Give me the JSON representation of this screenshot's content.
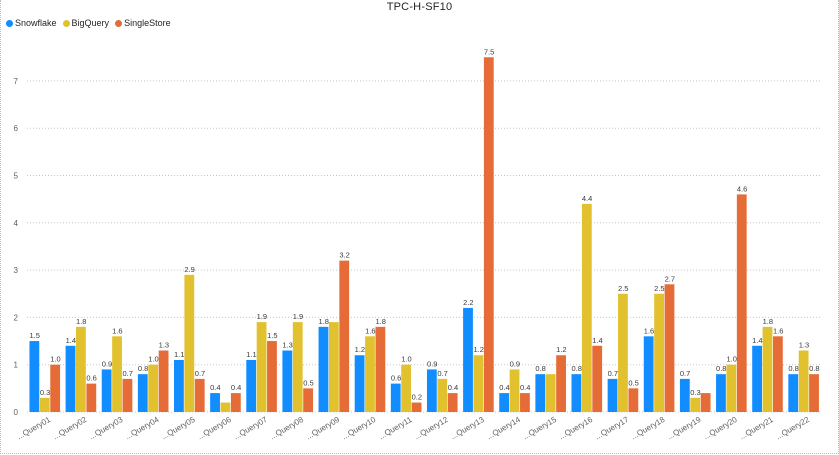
{
  "chart_data": {
    "type": "bar",
    "title": "TPC-H-SF10",
    "xlabel": "",
    "ylabel": "",
    "ylim": [
      0,
      8
    ],
    "yticks": [
      0,
      1,
      2,
      3,
      4,
      5,
      6,
      7
    ],
    "grid": true,
    "legend_position": "top-left",
    "categories": [
      "...Query01",
      "...Query02",
      "...Query03",
      "...Query04",
      "...Query05",
      "...Query06",
      "...Query07",
      "...Query08",
      "...Query09",
      "...Query10",
      "...Query11",
      "...Query12",
      "...Query13",
      "...Query14",
      "...Query15",
      "...Query16",
      "...Query17",
      "...Query18",
      "...Query19",
      "...Query20",
      "...Query21",
      "...Query22"
    ],
    "series": [
      {
        "name": "Snowflake",
        "color": "#118dff",
        "values": [
          1.5,
          1.4,
          0.9,
          0.8,
          1.1,
          0.4,
          1.1,
          1.3,
          1.8,
          1.2,
          0.6,
          0.9,
          2.2,
          0.4,
          0.8,
          0.8,
          0.7,
          1.6,
          0.7,
          0.8,
          1.4,
          0.8
        ]
      },
      {
        "name": "BigQuery",
        "color": "#e2c12e",
        "values": [
          0.3,
          1.8,
          1.6,
          1.0,
          2.9,
          0.2,
          1.9,
          1.9,
          1.9,
          1.6,
          1.0,
          0.7,
          1.2,
          0.9,
          0.8,
          4.4,
          2.5,
          2.5,
          0.3,
          1.0,
          1.8,
          1.3
        ]
      },
      {
        "name": "SingleStore",
        "color": "#e66c37",
        "values": [
          1.0,
          0.6,
          0.7,
          1.3,
          0.7,
          0.4,
          1.5,
          0.5,
          3.2,
          1.8,
          0.2,
          0.4,
          7.5,
          0.4,
          1.2,
          1.4,
          0.5,
          2.7,
          0.4,
          4.6,
          1.6,
          0.8
        ]
      }
    ],
    "data_labels": [
      [
        "1.5",
        "0.3",
        "1.0"
      ],
      [
        "1.4",
        "1.8",
        "0.6"
      ],
      [
        "0.9",
        "1.6",
        "0.7"
      ],
      [
        "0.8",
        "1.0",
        "1.3"
      ],
      [
        "1.1",
        "2.9",
        "0.7"
      ],
      [
        "0.4",
        "",
        "0.4"
      ],
      [
        "1.1",
        "1.9",
        "1.5"
      ],
      [
        "1.3",
        "1.9",
        "0.5"
      ],
      [
        "1.8",
        "",
        "3.2"
      ],
      [
        "1.2",
        "1.6",
        "1.8"
      ],
      [
        "0.6",
        "1.0",
        "0.2"
      ],
      [
        "0.9",
        "0.7",
        "0.4"
      ],
      [
        "2.2",
        "1.2",
        "7.5"
      ],
      [
        "0.4",
        "0.9",
        "0.4"
      ],
      [
        "0.8",
        "",
        "1.2"
      ],
      [
        "0.8",
        "4.4",
        "1.4"
      ],
      [
        "0.7",
        "2.5",
        "0.5"
      ],
      [
        "1.6",
        "2.5",
        "2.7"
      ],
      [
        "0.7",
        "0.3",
        ""
      ],
      [
        "0.8",
        "1.0",
        "4.6"
      ],
      [
        "1.4",
        "1.8",
        "1.6"
      ],
      [
        "0.8",
        "1.3",
        "0.8"
      ]
    ]
  }
}
